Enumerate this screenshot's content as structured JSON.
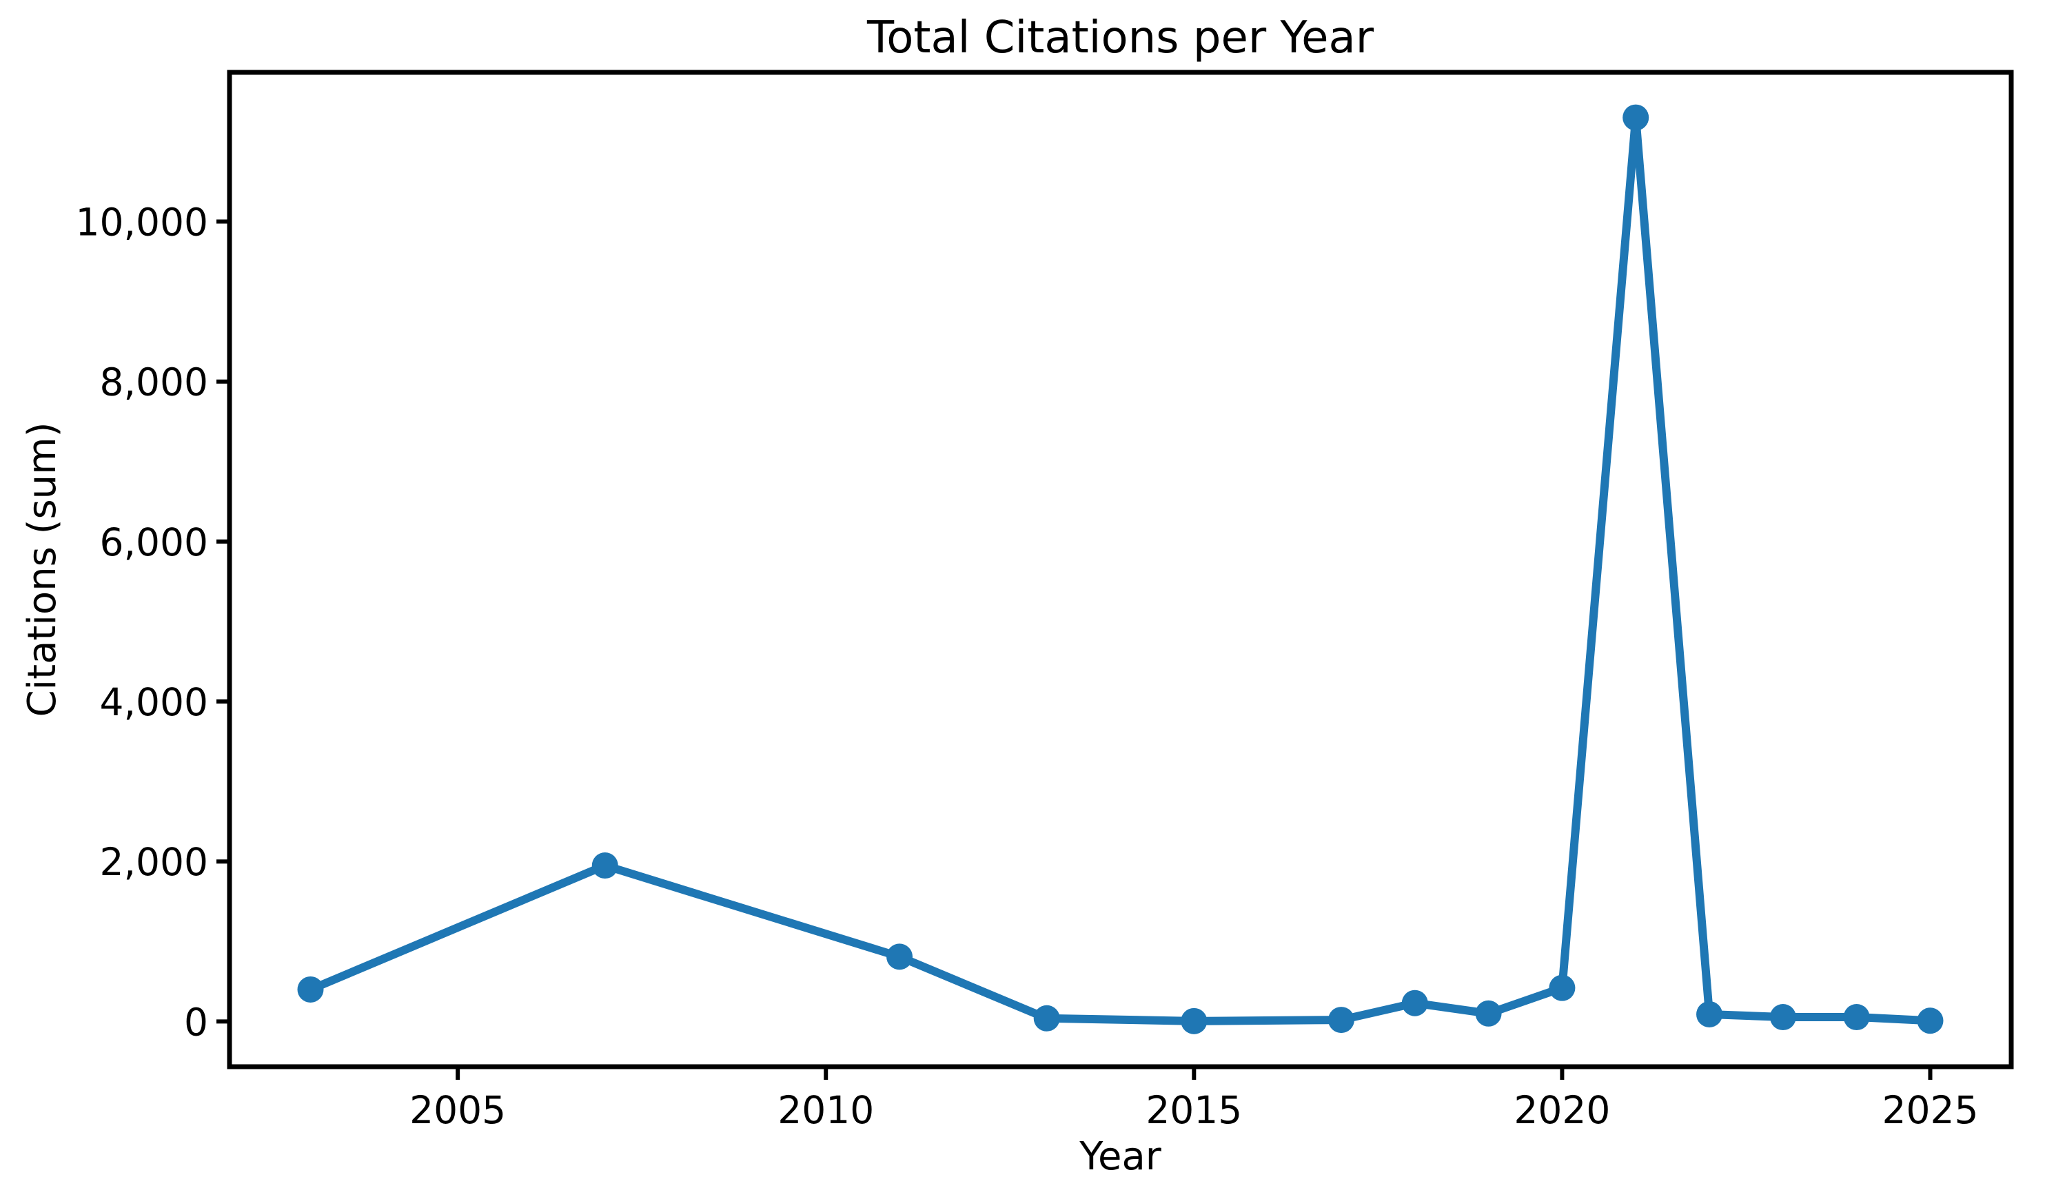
{
  "chart_data": {
    "type": "line",
    "title": "Total Citations per Year",
    "xlabel": "Year",
    "ylabel": "Citations (sum)",
    "x": [
      2003,
      2007,
      2011,
      2013,
      2015,
      2017,
      2018,
      2019,
      2020,
      2021,
      2022,
      2023,
      2024,
      2025
    ],
    "y": [
      400,
      1950,
      810,
      40,
      5,
      20,
      230,
      100,
      420,
      11300,
      90,
      55,
      55,
      10
    ],
    "xlim": [
      2001.9,
      2026.1
    ],
    "ylim": [
      -565,
      11865
    ],
    "xticks": [
      2005,
      2010,
      2015,
      2020,
      2025
    ],
    "xtick_labels": [
      "2005",
      "2010",
      "2015",
      "2020",
      "2025"
    ],
    "yticks": [
      0,
      2000,
      4000,
      6000,
      8000,
      10000
    ],
    "ytick_labels": [
      "0",
      "2,000",
      "4,000",
      "6,000",
      "8,000",
      "10,000"
    ],
    "line_color": "#1f77b4",
    "marker": "circle",
    "axis_color": "#000000",
    "grid": false,
    "legend": null
  }
}
